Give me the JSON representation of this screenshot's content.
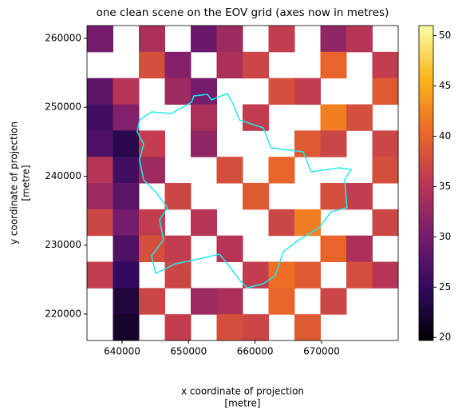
{
  "chart_data": {
    "type": "image",
    "title": "one clean scene on the EOV grid (axes now in metres)",
    "xlabel": [
      "x coordinate of projection",
      "[metre]"
    ],
    "ylabel": [
      "y coordinate of projection",
      "[metre]"
    ],
    "xlim": [
      634720,
      681520
    ],
    "ylim": [
      216170,
      261855
    ],
    "xticks": [
      640000,
      650000,
      660000,
      670000
    ],
    "yticks": [
      220000,
      230000,
      240000,
      250000,
      260000
    ],
    "clim": [
      19.7,
      51.0
    ],
    "cticks": [
      20,
      25,
      30,
      35,
      40,
      45,
      50
    ],
    "colormap": [
      "#000004",
      "#320a5e",
      "#781c6d",
      "#bc3754",
      "#ed6925",
      "#fbb61a",
      "#fcffa4"
    ],
    "boundary_color": "#22e8ee",
    "z": [
      [
        30,
        null,
        34,
        null,
        29,
        33,
        null,
        36,
        null,
        32,
        35,
        null
      ],
      [
        null,
        null,
        38,
        31,
        null,
        34,
        37,
        null,
        null,
        40,
        null,
        36
      ],
      [
        28,
        35,
        null,
        33,
        30,
        null,
        null,
        38,
        36,
        null,
        null,
        39
      ],
      [
        26,
        31,
        null,
        null,
        34,
        null,
        36,
        null,
        null,
        42,
        38,
        null
      ],
      [
        27,
        24,
        36,
        null,
        32,
        null,
        null,
        null,
        39,
        37,
        null,
        37
      ],
      [
        35,
        26,
        33,
        null,
        null,
        38,
        null,
        40,
        null,
        null,
        null,
        38
      ],
      [
        33,
        28,
        null,
        37,
        null,
        null,
        39,
        null,
        null,
        38,
        36,
        null
      ],
      [
        37,
        30,
        36,
        null,
        35,
        null,
        null,
        37,
        42,
        null,
        null,
        37
      ],
      [
        null,
        27,
        38,
        36,
        null,
        35,
        null,
        null,
        null,
        40,
        34,
        null
      ],
      [
        36,
        25,
        null,
        37,
        null,
        null,
        36,
        41,
        39,
        null,
        38,
        35
      ],
      [
        null,
        23,
        37,
        null,
        33,
        34,
        null,
        40,
        null,
        37,
        null,
        null
      ],
      [
        null,
        22,
        null,
        36,
        null,
        38,
        37,
        null,
        39,
        null,
        null,
        null
      ]
    ]
  }
}
